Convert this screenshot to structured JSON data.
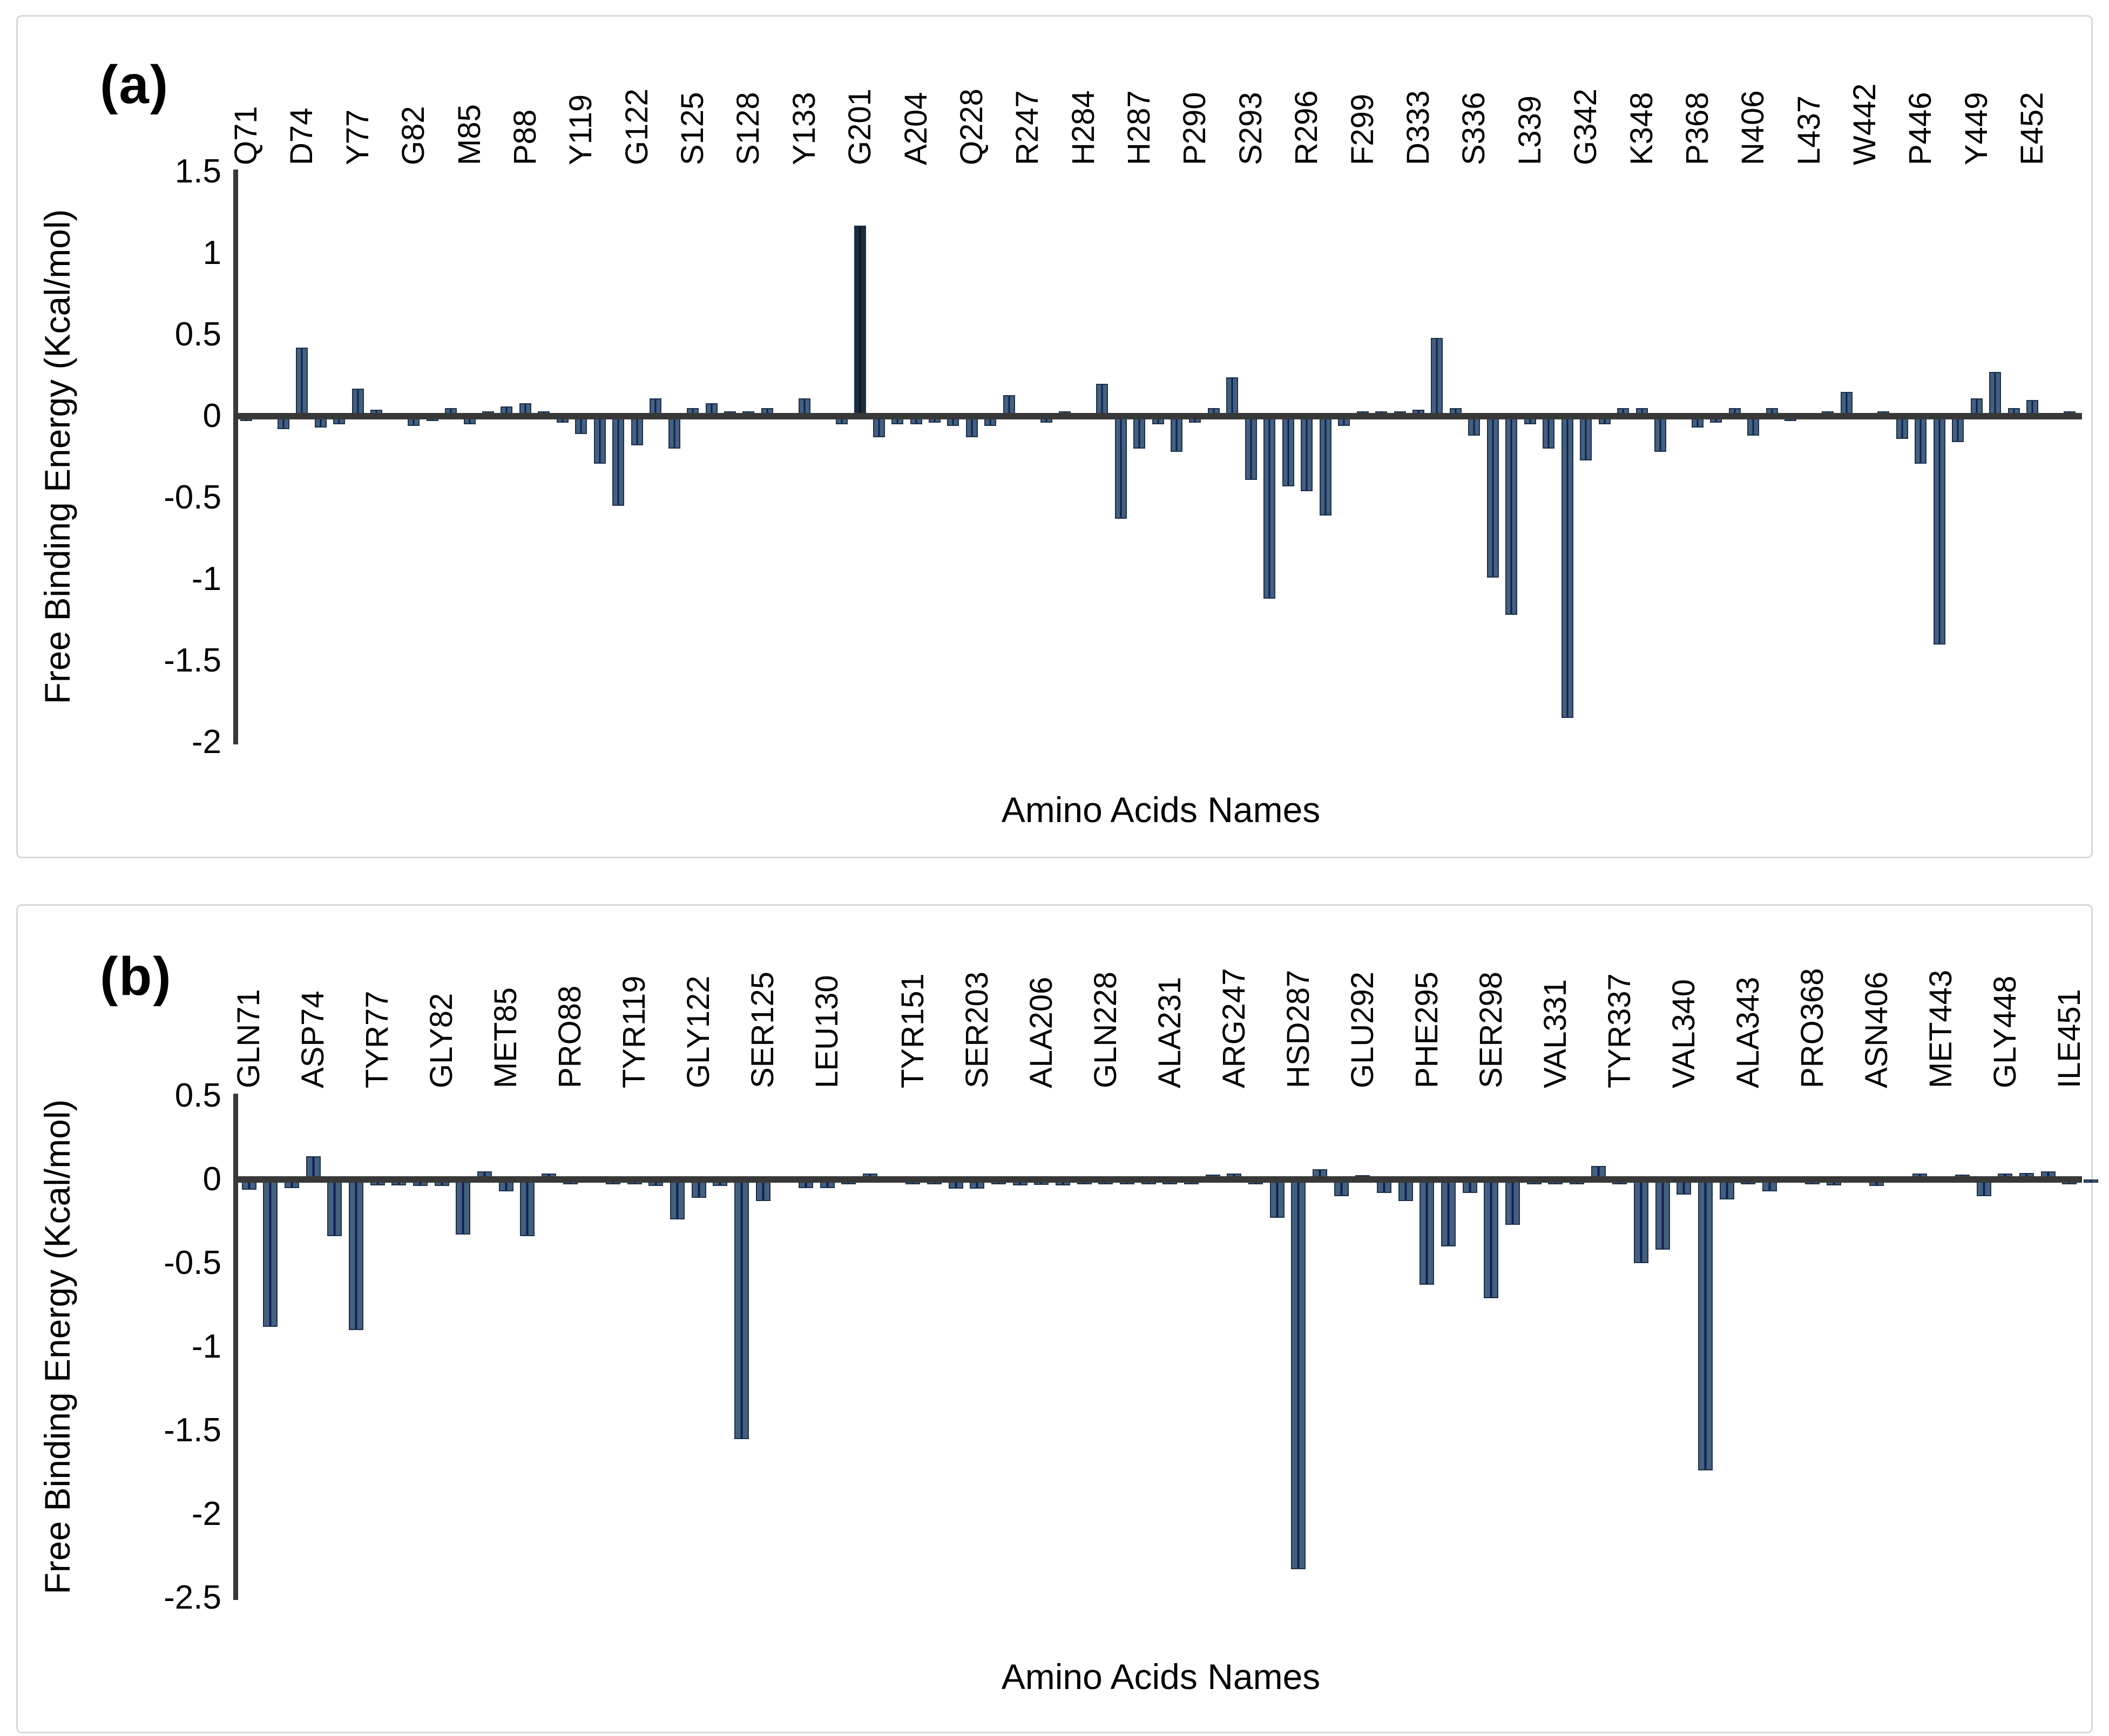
{
  "figure": {
    "background": "#ffffff",
    "panel_border_color": "#d8d8d8",
    "bar_fill": "#44607e",
    "bar_edge": "#1d3049",
    "bar_center_line": "#0c2153",
    "dark_bar_fill": "#1d2c3c",
    "dark_bar_center_line": "#091523",
    "axis_color": "#383838",
    "text_color": "#000000"
  },
  "chart_data": [
    {
      "panel_label": "(a)",
      "type": "bar",
      "xlabel": "Amino Acids Names",
      "ylabel": "Free Binding Energy (Kcal/mol)",
      "ylim": [
        -2,
        1.5
      ],
      "yticks": [
        "1.5",
        "1",
        "0.5",
        "0",
        "-0.5",
        "-1",
        "-1.5",
        "-2"
      ],
      "grid": false,
      "legend": "none",
      "bars": [
        {
          "l": "Q71",
          "v": -0.03
        },
        {
          "v": -0.02
        },
        {
          "v": -0.08
        },
        {
          "l": "D74",
          "v": 0.42
        },
        {
          "v": -0.07
        },
        {
          "v": -0.05
        },
        {
          "l": "Y77",
          "v": 0.17
        },
        {
          "v": 0.04
        },
        {
          "v": -0.02
        },
        {
          "l": "G82",
          "v": -0.06
        },
        {
          "v": -0.03
        },
        {
          "v": 0.05
        },
        {
          "l": "M85",
          "v": -0.05
        },
        {
          "v": 0.03
        },
        {
          "v": 0.06
        },
        {
          "l": "P88",
          "v": 0.08
        },
        {
          "v": 0.03
        },
        {
          "v": -0.04
        },
        {
          "l": "Y119",
          "v": -0.11
        },
        {
          "v": -0.29
        },
        {
          "v": -0.55
        },
        {
          "l": "G122",
          "v": -0.18
        },
        {
          "v": 0.11
        },
        {
          "v": -0.2
        },
        {
          "l": "S125",
          "v": 0.05
        },
        {
          "v": 0.08
        },
        {
          "v": 0.03
        },
        {
          "l": "S128",
          "v": 0.03
        },
        {
          "v": 0.05
        },
        {
          "v": -0.02
        },
        {
          "l": "Y133",
          "v": 0.11
        },
        {
          "v": 0.02
        },
        {
          "v": -0.05
        },
        {
          "l": "G201",
          "v": 1.17,
          "dark": true
        },
        {
          "v": -0.13
        },
        {
          "v": -0.05
        },
        {
          "l": "A204",
          "v": -0.05
        },
        {
          "v": -0.04
        },
        {
          "v": -0.06
        },
        {
          "l": "Q228",
          "v": -0.13
        },
        {
          "v": -0.06
        },
        {
          "v": 0.13
        },
        {
          "l": "R247",
          "v": 0.02
        },
        {
          "v": -0.04
        },
        {
          "v": 0.03
        },
        {
          "l": "H284",
          "v": -0.02
        },
        {
          "v": 0.2
        },
        {
          "v": -0.63
        },
        {
          "l": "H287",
          "v": -0.2
        },
        {
          "v": -0.05
        },
        {
          "v": -0.22
        },
        {
          "l": "P290",
          "v": -0.04
        },
        {
          "v": 0.05
        },
        {
          "v": 0.24
        },
        {
          "l": "S293",
          "v": -0.39
        },
        {
          "v": -1.12
        },
        {
          "v": -0.43
        },
        {
          "l": "R296",
          "v": -0.46
        },
        {
          "v": -0.61
        },
        {
          "v": -0.06
        },
        {
          "l": "F299",
          "v": 0.03
        },
        {
          "v": 0.03
        },
        {
          "v": 0.03
        },
        {
          "l": "D333",
          "v": 0.04
        },
        {
          "v": 0.48
        },
        {
          "v": 0.05
        },
        {
          "l": "S336",
          "v": -0.12
        },
        {
          "v": -0.99
        },
        {
          "v": -1.22
        },
        {
          "l": "L339",
          "v": -0.05
        },
        {
          "v": -0.2
        },
        {
          "v": -1.85
        },
        {
          "l": "G342",
          "v": -0.27
        },
        {
          "v": -0.05
        },
        {
          "v": 0.05
        },
        {
          "l": "K348",
          "v": 0.05
        },
        {
          "v": -0.22
        },
        {
          "v": -0.01
        },
        {
          "l": "P368",
          "v": -0.07
        },
        {
          "v": -0.04
        },
        {
          "v": 0.05
        },
        {
          "l": "N406",
          "v": -0.12
        },
        {
          "v": 0.05
        },
        {
          "v": -0.03
        },
        {
          "l": "L437",
          "v": -0.02
        },
        {
          "v": 0.03
        },
        {
          "v": 0.15
        },
        {
          "l": "W442",
          "v": 0.02
        },
        {
          "v": 0.03
        },
        {
          "v": -0.14
        },
        {
          "l": "P446",
          "v": -0.29
        },
        {
          "v": -1.4
        },
        {
          "v": -0.16
        },
        {
          "l": "Y449",
          "v": 0.11
        },
        {
          "v": 0.27
        },
        {
          "v": 0.05
        },
        {
          "l": "E452",
          "v": 0.1
        },
        {
          "v": -0.02
        },
        {
          "v": 0.03
        }
      ]
    },
    {
      "panel_label": "(b)",
      "type": "bar",
      "xlabel": "Amino Acids Names",
      "ylabel": "Free Binding Energy (Kcal/mol)",
      "ylim": [
        -2.5,
        0.5
      ],
      "yticks": [
        "0.5",
        "0",
        "-0.5",
        "-1",
        "-1.5",
        "-2",
        "-2.5"
      ],
      "grid": false,
      "legend": "none",
      "bars": [
        {
          "l": "GLN71",
          "v": -0.06
        },
        {
          "v": -0.88
        },
        {
          "v": -0.05
        },
        {
          "l": "ASP74",
          "v": 0.14
        },
        {
          "v": -0.34
        },
        {
          "v": -0.9
        },
        {
          "l": "TYR77",
          "v": -0.035
        },
        {
          "v": -0.035
        },
        {
          "v": -0.04
        },
        {
          "l": "GLY82",
          "v": -0.04
        },
        {
          "v": -0.33
        },
        {
          "v": 0.05
        },
        {
          "l": "MET85",
          "v": -0.07
        },
        {
          "v": -0.34
        },
        {
          "v": 0.035
        },
        {
          "l": "PRO88",
          "v": -0.03
        },
        {
          "v": -0.02
        },
        {
          "v": -0.03
        },
        {
          "l": "TYR119",
          "v": -0.03
        },
        {
          "v": -0.04
        },
        {
          "v": -0.24
        },
        {
          "l": "GLY122",
          "v": -0.11
        },
        {
          "v": -0.04
        },
        {
          "v": -1.55
        },
        {
          "l": "SER125",
          "v": -0.13
        },
        {
          "v": -0.02
        },
        {
          "v": -0.05
        },
        {
          "l": "LEU130",
          "v": -0.05
        },
        {
          "v": -0.03
        },
        {
          "v": 0.035
        },
        {
          "v": -0.02
        },
        {
          "l": "TYR151",
          "v": -0.03
        },
        {
          "v": -0.03
        },
        {
          "v": -0.055
        },
        {
          "l": "SER203",
          "v": -0.055
        },
        {
          "v": -0.03
        },
        {
          "v": -0.035
        },
        {
          "l": "ALA206",
          "v": -0.033
        },
        {
          "v": -0.035
        },
        {
          "v": -0.03
        },
        {
          "l": "GLN228",
          "v": -0.03
        },
        {
          "v": -0.03
        },
        {
          "v": -0.03
        },
        {
          "l": "ALA231",
          "v": -0.03
        },
        {
          "v": -0.03
        },
        {
          "v": 0.03
        },
        {
          "l": "ARG247",
          "v": 0.035
        },
        {
          "v": -0.03
        },
        {
          "v": -0.23
        },
        {
          "l": "HSD287",
          "v": -2.33
        },
        {
          "v": 0.06
        },
        {
          "v": -0.1
        },
        {
          "l": "GLU292",
          "v": 0.025
        },
        {
          "v": -0.08
        },
        {
          "v": -0.13
        },
        {
          "l": "PHE295",
          "v": -0.63
        },
        {
          "v": -0.4
        },
        {
          "v": -0.08
        },
        {
          "l": "SER298",
          "v": -0.71
        },
        {
          "v": -0.27
        },
        {
          "v": -0.03
        },
        {
          "l": "VAL331",
          "v": -0.03
        },
        {
          "v": -0.03
        },
        {
          "v": 0.08
        },
        {
          "l": "TYR337",
          "v": -0.03
        },
        {
          "v": -0.5
        },
        {
          "v": -0.42
        },
        {
          "l": "VAL340",
          "v": -0.09
        },
        {
          "v": -1.74
        },
        {
          "v": -0.12
        },
        {
          "l": "ALA343",
          "v": -0.03
        },
        {
          "v": -0.07
        },
        {
          "v": -0.02
        },
        {
          "l": "PRO368",
          "v": -0.03
        },
        {
          "v": -0.035
        },
        {
          "v": -0.02
        },
        {
          "l": "ASN406",
          "v": -0.04
        },
        {
          "v": -0.02
        },
        {
          "v": 0.035
        },
        {
          "l": "MET443",
          "v": -0.02
        },
        {
          "v": 0.03
        },
        {
          "v": -0.1
        },
        {
          "l": "GLY448",
          "v": 0.035
        },
        {
          "v": 0.04
        },
        {
          "v": 0.05
        },
        {
          "l": "ILE451",
          "v": -0.03
        },
        {
          "v": -0.02
        }
      ]
    }
  ]
}
